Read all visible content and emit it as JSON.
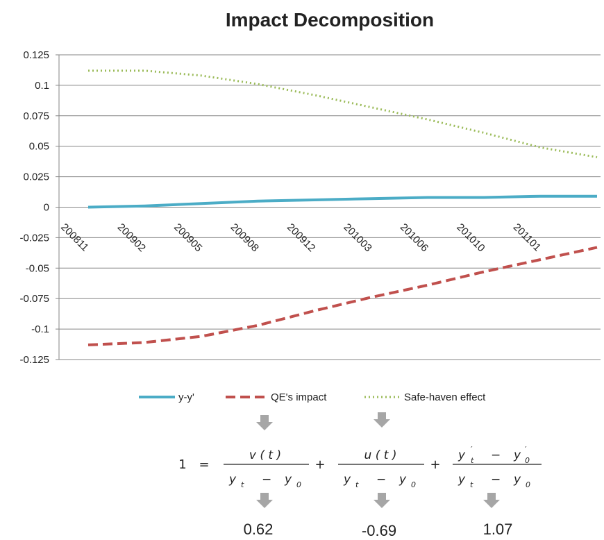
{
  "chart_data": {
    "type": "line",
    "title": "Impact Decomposition",
    "categories": [
      "200811",
      "200902",
      "200905",
      "200908",
      "200912",
      "201003",
      "201006",
      "201010",
      "201101",
      null
    ],
    "series": [
      {
        "name": "y-y'",
        "color": "#4bacc6",
        "style": "solid",
        "values": [
          0,
          0.001,
          0.003,
          0.005,
          0.006,
          0.007,
          0.008,
          0.008,
          0.009,
          0.009
        ]
      },
      {
        "name": "QE's impact",
        "color": "#c0504d",
        "style": "dashed",
        "values": [
          -0.113,
          -0.111,
          -0.106,
          -0.097,
          -0.085,
          -0.074,
          -0.064,
          -0.053,
          -0.043,
          -0.033
        ]
      },
      {
        "name": "Safe-haven effect",
        "color": "#9bbb59",
        "style": "dotted",
        "values": [
          0.112,
          0.112,
          0.108,
          0.101,
          0.092,
          0.082,
          0.072,
          0.061,
          0.049,
          0.041
        ]
      }
    ],
    "ylim": [
      -0.125,
      0.125
    ],
    "yticks": [
      0.125,
      0.1,
      0.075,
      0.05,
      0.025,
      0,
      -0.025,
      -0.05,
      -0.075,
      -0.1,
      -0.125
    ],
    "grid": true
  },
  "formula": {
    "lhs": "1",
    "equals": "=",
    "plus": "+",
    "fractions": [
      {
        "numerator": "v ( t )",
        "denominator": [
          "y",
          "t",
          "−",
          "y",
          "0"
        ]
      },
      {
        "numerator": "u ( t )",
        "denominator": [
          "y",
          "t",
          "−",
          "y",
          "0"
        ]
      },
      {
        "numerator": [
          "y",
          "′",
          "t",
          "−",
          "y",
          "′",
          "0"
        ],
        "denominator": [
          "y",
          "t",
          "−",
          "y",
          "0"
        ]
      }
    ],
    "results": [
      0.62,
      -0.69,
      1.07
    ]
  }
}
